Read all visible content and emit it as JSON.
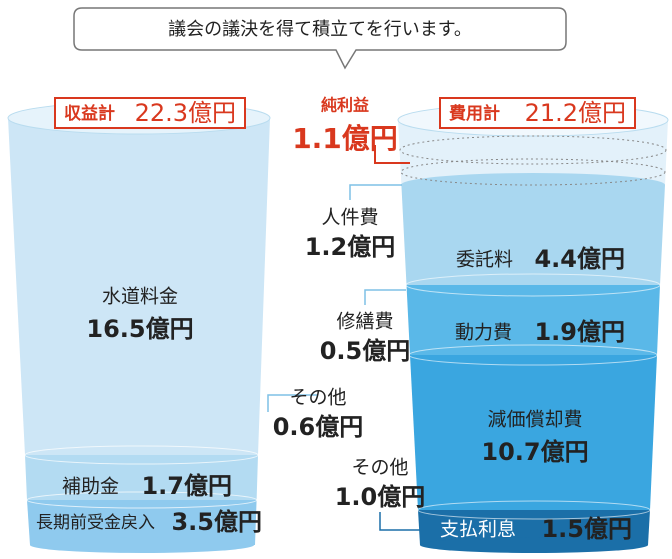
{
  "message": "議会の議決を得て積立てを行います。",
  "revenue": {
    "total_label": "収益計",
    "total": "22.3億円",
    "items": [
      {
        "label": "水道料金",
        "amount": "16.5億円"
      },
      {
        "label": "補助金",
        "amount": "1.7億円"
      },
      {
        "label": "長期前受金戻入",
        "amount": "3.5億円"
      },
      {
        "label": "その他",
        "amount": "0.6億円"
      }
    ]
  },
  "net_income": {
    "label": "純利益",
    "amount": "1.1億円"
  },
  "expenses": {
    "total_label": "費用計",
    "total": "21.2億円",
    "items": [
      {
        "label": "委託料",
        "amount": "4.4億円"
      },
      {
        "label": "動力費",
        "amount": "1.9億円"
      },
      {
        "label": "減価償却費",
        "amount": "10.7億円"
      },
      {
        "label": "支払利息",
        "amount": "1.5億円"
      },
      {
        "label": "人件費",
        "amount": "1.2億円"
      },
      {
        "label": "修繕費",
        "amount": "0.5億円"
      },
      {
        "label": "その他",
        "amount": "1.0億円"
      }
    ]
  }
}
